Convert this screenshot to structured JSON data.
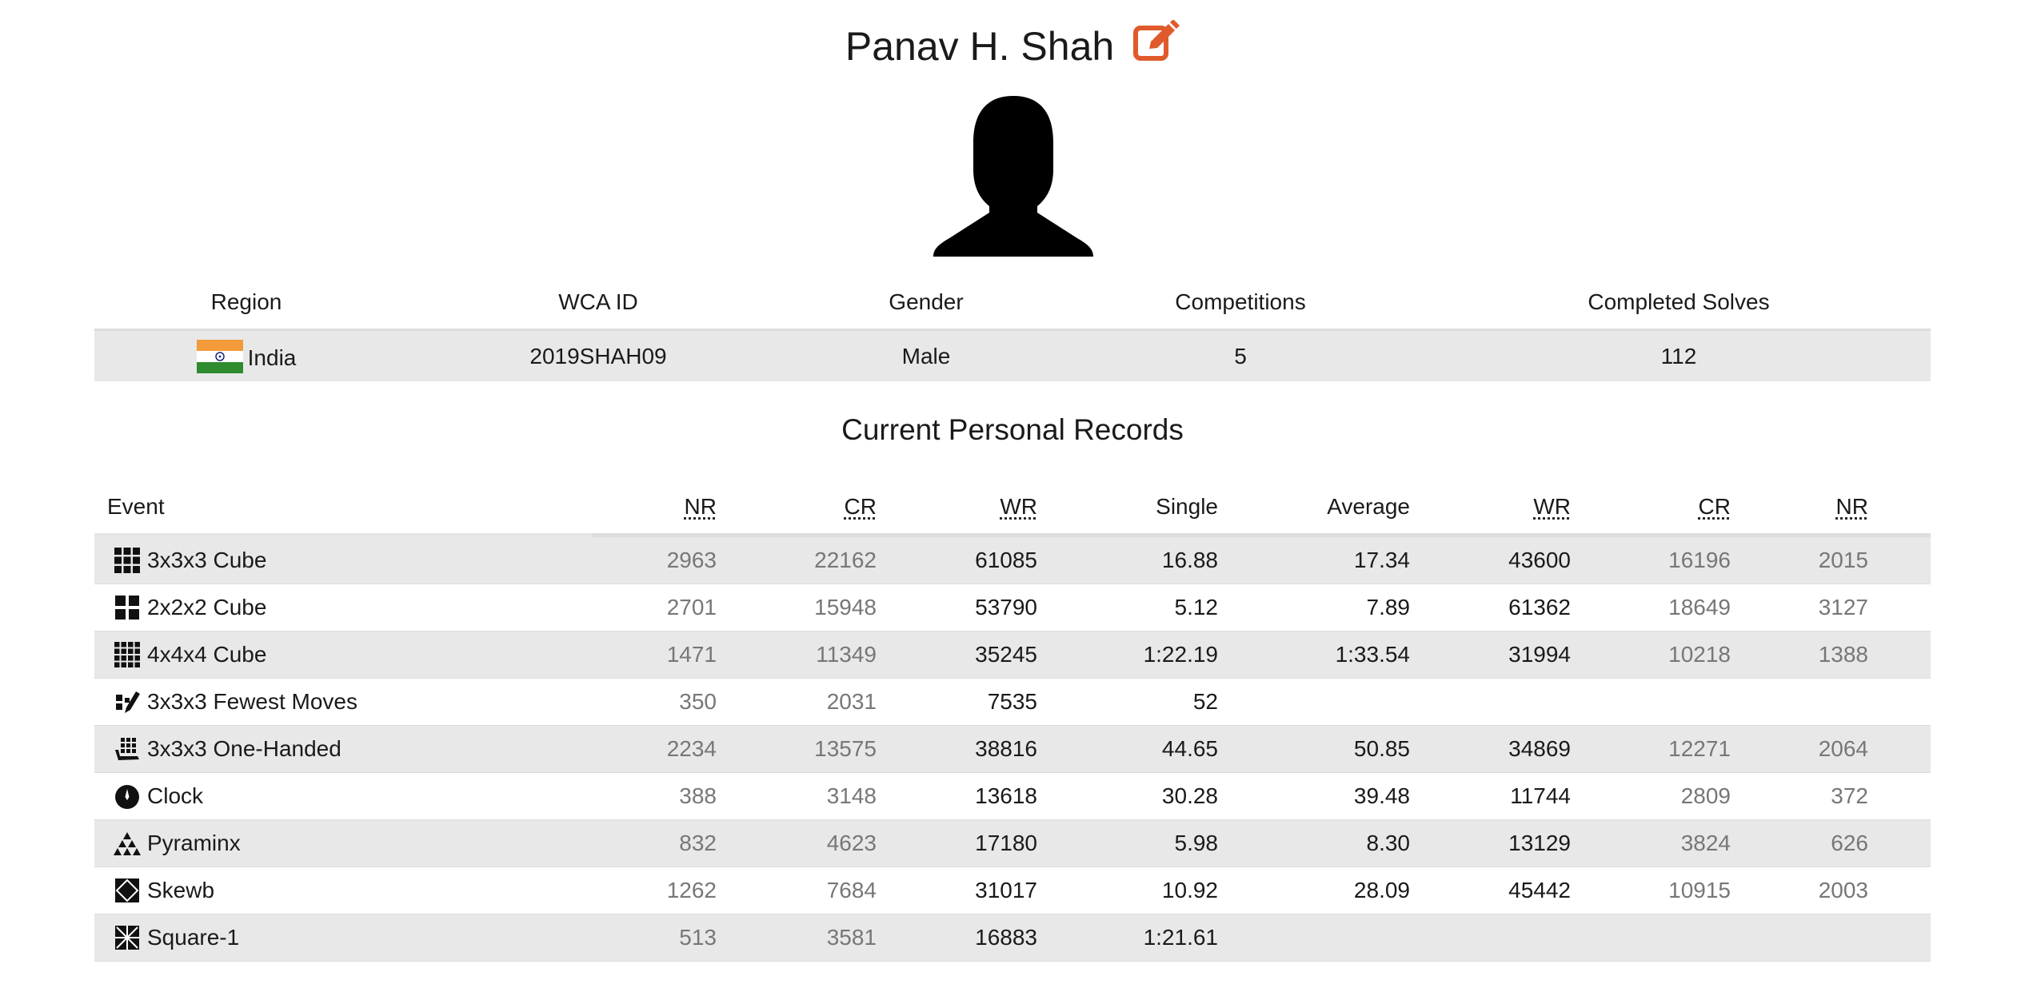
{
  "profile": {
    "name": "Panav H. Shah",
    "edit_icon": "edit-icon",
    "avatar_icon": "person-silhouette-icon"
  },
  "info": {
    "headers": {
      "region": "Region",
      "wca_id": "WCA ID",
      "gender": "Gender",
      "competitions": "Competitions",
      "completed_solves": "Completed Solves"
    },
    "values": {
      "region": "India",
      "region_flag": "india-flag-icon",
      "wca_id": "2019SHAH09",
      "gender": "Male",
      "competitions": "5",
      "completed_solves": "112"
    }
  },
  "records": {
    "title": "Current Personal Records",
    "headers": {
      "event": "Event",
      "nr_single": "NR",
      "cr_single": "CR",
      "wr_single": "WR",
      "single": "Single",
      "average": "Average",
      "wr_average": "WR",
      "cr_average": "CR",
      "nr_average": "NR"
    },
    "rows": [
      {
        "event": "3x3x3 Cube",
        "icon": "cube-3x3-icon",
        "nr_single": "2963",
        "cr_single": "22162",
        "wr_single": "61085",
        "single": "16.88",
        "average": "17.34",
        "wr_average": "43600",
        "cr_average": "16196",
        "nr_average": "2015"
      },
      {
        "event": "2x2x2 Cube",
        "icon": "cube-2x2-icon",
        "nr_single": "2701",
        "cr_single": "15948",
        "wr_single": "53790",
        "single": "5.12",
        "average": "7.89",
        "wr_average": "61362",
        "cr_average": "18649",
        "nr_average": "3127"
      },
      {
        "event": "4x4x4 Cube",
        "icon": "cube-4x4-icon",
        "nr_single": "1471",
        "cr_single": "11349",
        "wr_single": "35245",
        "single": "1:22.19",
        "average": "1:33.54",
        "wr_average": "31994",
        "cr_average": "10218",
        "nr_average": "1388"
      },
      {
        "event": "3x3x3 Fewest Moves",
        "icon": "fewest-moves-icon",
        "nr_single": "350",
        "cr_single": "2031",
        "wr_single": "7535",
        "single": "52",
        "average": "",
        "wr_average": "",
        "cr_average": "",
        "nr_average": ""
      },
      {
        "event": "3x3x3 One-Handed",
        "icon": "one-handed-icon",
        "nr_single": "2234",
        "cr_single": "13575",
        "wr_single": "38816",
        "single": "44.65",
        "average": "50.85",
        "wr_average": "34869",
        "cr_average": "12271",
        "nr_average": "2064"
      },
      {
        "event": "Clock",
        "icon": "clock-icon",
        "nr_single": "388",
        "cr_single": "3148",
        "wr_single": "13618",
        "single": "30.28",
        "average": "39.48",
        "wr_average": "11744",
        "cr_average": "2809",
        "nr_average": "372"
      },
      {
        "event": "Pyraminx",
        "icon": "pyraminx-icon",
        "nr_single": "832",
        "cr_single": "4623",
        "wr_single": "17180",
        "single": "5.98",
        "average": "8.30",
        "wr_average": "13129",
        "cr_average": "3824",
        "nr_average": "626"
      },
      {
        "event": "Skewb",
        "icon": "skewb-icon",
        "nr_single": "1262",
        "cr_single": "7684",
        "wr_single": "31017",
        "single": "10.92",
        "average": "28.09",
        "wr_average": "45442",
        "cr_average": "10915",
        "nr_average": "2003"
      },
      {
        "event": "Square-1",
        "icon": "square-1-icon",
        "nr_single": "513",
        "cr_single": "3581",
        "wr_single": "16883",
        "single": "1:21.61",
        "average": "",
        "wr_average": "",
        "cr_average": "",
        "nr_average": ""
      }
    ]
  },
  "colors": {
    "edit_icon": "#e05a2b",
    "row_shade": "#e8e8e8",
    "rank_muted": "#777777"
  }
}
